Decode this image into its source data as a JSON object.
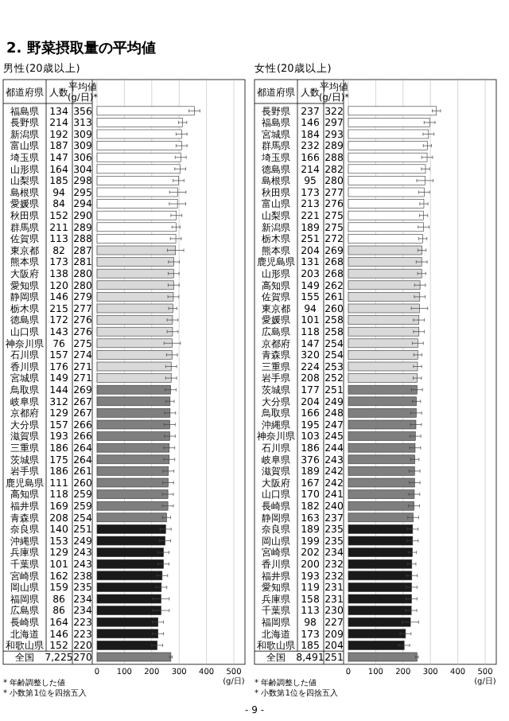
{
  "chart_data": [
    {
      "type": "bar",
      "orientation": "horizontal",
      "title": "2. 野菜摂取量の平均値",
      "subtitle": "男性(20歳以上)",
      "ylabel": "都道府県",
      "xlabel": "(g/日)",
      "categories": [
        "福島県",
        "長野県",
        "新潟県",
        "富山県",
        "埼玉県",
        "山形県",
        "山梨県",
        "島根県",
        "愛媛県",
        "秋田県",
        "群馬県",
        "佐賀県",
        "東京都",
        "熊本県",
        "大阪府",
        "愛知県",
        "静岡県",
        "栃木県",
        "徳島県",
        "山口県",
        "神奈川県",
        "石川県",
        "香川県",
        "宮城県",
        "鳥取県",
        "岐阜県",
        "京都府",
        "大分県",
        "滋賀県",
        "三重県",
        "茨城県",
        "岩手県",
        "鹿児島県",
        "高知県",
        "福井県",
        "青森県",
        "奈良県",
        "沖縄県",
        "兵庫県",
        "千葉県",
        "宮崎県",
        "岡山県",
        "福岡県",
        "広島県",
        "長崎県",
        "北海道",
        "和歌山県",
        "全国"
      ],
      "values": [
        356,
        313,
        309,
        309,
        306,
        304,
        298,
        295,
        294,
        290,
        289,
        288,
        287,
        281,
        280,
        280,
        279,
        277,
        276,
        276,
        275,
        274,
        271,
        271,
        269,
        267,
        267,
        266,
        266,
        264,
        264,
        261,
        260,
        259,
        259,
        254,
        251,
        249,
        243,
        243,
        238,
        235,
        234,
        234,
        223,
        223,
        220,
        270
      ],
      "value_labels": [
        "356",
        "313",
        "309",
        "309",
        "306",
        "304",
        "298",
        "295",
        "294",
        "290",
        "289",
        "288",
        "287",
        "281",
        "280",
        "280",
        "279",
        "277",
        "276",
        "276",
        "275",
        "274",
        "271",
        "271",
        "269",
        "267",
        "267",
        "266",
        "266",
        "264",
        "264",
        "261",
        "260",
        "259",
        "259",
        "254",
        "251",
        "249",
        "243",
        "243",
        "238",
        "235",
        "234",
        "234",
        "223",
        "223",
        "220",
        "270"
      ],
      "errors": [
        20,
        15,
        20,
        20,
        20,
        20,
        20,
        30,
        30,
        20,
        15,
        20,
        30,
        20,
        20,
        20,
        20,
        15,
        20,
        20,
        30,
        20,
        20,
        20,
        20,
        15,
        20,
        20,
        20,
        20,
        20,
        20,
        20,
        20,
        20,
        15,
        20,
        20,
        20,
        20,
        20,
        20,
        30,
        30,
        20,
        20,
        20,
        5
      ],
      "colors": [
        "#ffffff",
        "#ffffff",
        "#ffffff",
        "#ffffff",
        "#ffffff",
        "#ffffff",
        "#ffffff",
        "#ffffff",
        "#ffffff",
        "#ffffff",
        "#ffffff",
        "#ffffff",
        "#d9d9d9",
        "#d9d9d9",
        "#d9d9d9",
        "#d9d9d9",
        "#d9d9d9",
        "#d9d9d9",
        "#d9d9d9",
        "#d9d9d9",
        "#d9d9d9",
        "#d9d9d9",
        "#d9d9d9",
        "#d9d9d9",
        "#7f7f7f",
        "#7f7f7f",
        "#7f7f7f",
        "#7f7f7f",
        "#7f7f7f",
        "#7f7f7f",
        "#7f7f7f",
        "#7f7f7f",
        "#7f7f7f",
        "#7f7f7f",
        "#7f7f7f",
        "#7f7f7f",
        "#1a1a1a",
        "#1a1a1a",
        "#1a1a1a",
        "#1a1a1a",
        "#1a1a1a",
        "#1a1a1a",
        "#1a1a1a",
        "#1a1a1a",
        "#1a1a1a",
        "#1a1a1a",
        "#1a1a1a",
        "#7f7f7f"
      ],
      "xlim": [
        0,
        500
      ],
      "xticks": [
        0,
        100,
        200,
        300,
        400,
        500
      ],
      "grid": "x",
      "annotations": [
        "人数",
        "平均値\n(g/日)*",
        "* 年齢調整した値",
        "* 小数第1位を四捨五入",
        "134",
        "214",
        "192",
        "187",
        "147",
        "164",
        "185",
        "94",
        "84",
        "152",
        "211",
        "113",
        "82",
        "173",
        "138",
        "120",
        "146",
        "215",
        "172",
        "143",
        "76",
        "157",
        "176",
        "149",
        "144",
        "312",
        "129",
        "157",
        "193",
        "186",
        "175",
        "186",
        "111",
        "118",
        "169",
        "208",
        "140",
        "153",
        "129",
        "101",
        "162",
        "159",
        "86",
        "86",
        "164",
        "146",
        "152",
        "7,225"
      ]
    },
    {
      "type": "bar",
      "orientation": "horizontal",
      "subtitle": "女性(20歳以上)",
      "ylabel": "都道府県",
      "xlabel": "(g/日)",
      "categories": [
        "長野県",
        "福島県",
        "宮城県",
        "群馬県",
        "埼玉県",
        "徳島県",
        "島根県",
        "秋田県",
        "富山県",
        "山梨県",
        "新潟県",
        "栃木県",
        "熊本県",
        "鹿児島県",
        "山形県",
        "高知県",
        "佐賀県",
        "東京都",
        "愛媛県",
        "広島県",
        "京都府",
        "青森県",
        "三重県",
        "岩手県",
        "茨城県",
        "大分県",
        "鳥取県",
        "沖縄県",
        "神奈川県",
        "石川県",
        "岐阜県",
        "滋賀県",
        "大阪府",
        "山口県",
        "長崎県",
        "静岡県",
        "奈良県",
        "岡山県",
        "宮崎県",
        "香川県",
        "福井県",
        "愛知県",
        "兵庫県",
        "千葉県",
        "福岡県",
        "北海道",
        "和歌山県",
        "全国"
      ],
      "values": [
        322,
        297,
        293,
        289,
        288,
        282,
        280,
        277,
        276,
        275,
        275,
        272,
        269,
        268,
        268,
        262,
        261,
        260,
        258,
        258,
        254,
        254,
        253,
        252,
        251,
        249,
        248,
        247,
        245,
        244,
        243,
        242,
        242,
        241,
        240,
        237,
        235,
        235,
        234,
        232,
        232,
        231,
        231,
        230,
        227,
        209,
        204,
        251
      ],
      "value_labels": [
        "322",
        "297",
        "293",
        "289",
        "288",
        "282",
        "280",
        "277",
        "276",
        "275",
        "275",
        "272",
        "269",
        "268",
        "268",
        "262",
        "261",
        "260",
        "258",
        "258",
        "254",
        "254",
        "253",
        "252",
        "251",
        "249",
        "248",
        "247",
        "245",
        "244",
        "243",
        "242",
        "242",
        "241",
        "240",
        "237",
        "235",
        "235",
        "234",
        "232",
        "232",
        "231",
        "231",
        "230",
        "227",
        "209",
        "204",
        "251"
      ],
      "errors": [
        15,
        20,
        20,
        15,
        20,
        15,
        30,
        20,
        15,
        15,
        20,
        15,
        15,
        20,
        15,
        20,
        20,
        30,
        20,
        20,
        20,
        15,
        15,
        15,
        20,
        15,
        20,
        20,
        20,
        20,
        15,
        20,
        20,
        20,
        20,
        20,
        20,
        20,
        15,
        15,
        20,
        20,
        20,
        20,
        30,
        20,
        20,
        5
      ],
      "colors": [
        "#ffffff",
        "#ffffff",
        "#ffffff",
        "#ffffff",
        "#ffffff",
        "#ffffff",
        "#ffffff",
        "#ffffff",
        "#ffffff",
        "#ffffff",
        "#ffffff",
        "#ffffff",
        "#d9d9d9",
        "#d9d9d9",
        "#d9d9d9",
        "#d9d9d9",
        "#d9d9d9",
        "#d9d9d9",
        "#d9d9d9",
        "#d9d9d9",
        "#d9d9d9",
        "#d9d9d9",
        "#d9d9d9",
        "#d9d9d9",
        "#7f7f7f",
        "#7f7f7f",
        "#7f7f7f",
        "#7f7f7f",
        "#7f7f7f",
        "#7f7f7f",
        "#7f7f7f",
        "#7f7f7f",
        "#7f7f7f",
        "#7f7f7f",
        "#7f7f7f",
        "#7f7f7f",
        "#1a1a1a",
        "#1a1a1a",
        "#1a1a1a",
        "#1a1a1a",
        "#1a1a1a",
        "#1a1a1a",
        "#1a1a1a",
        "#1a1a1a",
        "#1a1a1a",
        "#1a1a1a",
        "#1a1a1a",
        "#7f7f7f"
      ],
      "xlim": [
        0,
        500
      ],
      "xticks": [
        0,
        100,
        200,
        300,
        400,
        500
      ],
      "grid": "x",
      "annotations": [
        "人数",
        "平均値\n(g/日)*",
        "* 年齢調整した値",
        "* 小数第1位を四捨五入",
        "237",
        "146",
        "184",
        "232",
        "166",
        "214",
        "95",
        "173",
        "213",
        "221",
        "189",
        "251",
        "204",
        "131",
        "203",
        "149",
        "155",
        "94",
        "101",
        "118",
        "147",
        "320",
        "224",
        "208",
        "177",
        "204",
        "166",
        "195",
        "103",
        "186",
        "376",
        "189",
        "167",
        "170",
        "182",
        "163",
        "189",
        "199",
        "202",
        "200",
        "193",
        "119",
        "158",
        "113",
        "98",
        "173",
        "185",
        "8,491",
        "- 9 -"
      ]
    }
  ]
}
